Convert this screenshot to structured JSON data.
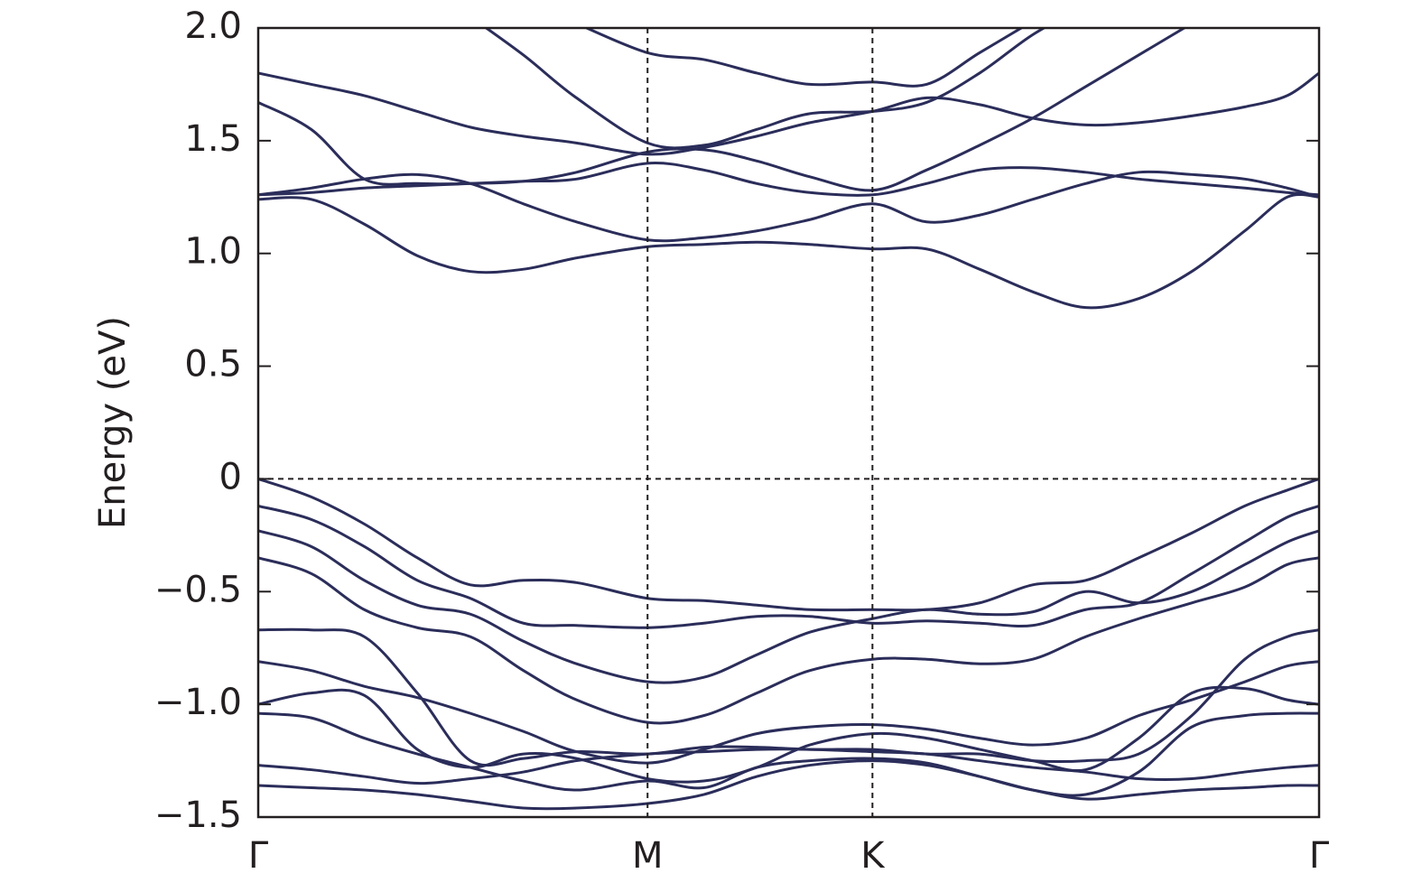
{
  "chart_data": {
    "type": "line",
    "ylabel": "Energy (eV)",
    "x": [
      0,
      0.05,
      0.1,
      0.15,
      0.2,
      0.25,
      0.3,
      0.367,
      0.42,
      0.47,
      0.52,
      0.579,
      0.63,
      0.68,
      0.73,
      0.78,
      0.83,
      0.88,
      0.93,
      0.97,
      1
    ],
    "xlim": [
      0,
      1
    ],
    "xticks": [
      {
        "value": 0,
        "label": "Γ"
      },
      {
        "value": 0.367,
        "label": "M"
      },
      {
        "value": 0.579,
        "label": "K"
      },
      {
        "value": 1,
        "label": "Γ"
      }
    ],
    "ylim": [
      -1.5,
      2.0
    ],
    "yticks": [
      {
        "value": 2.0,
        "label": "2.0"
      },
      {
        "value": 1.5,
        "label": "1.5"
      },
      {
        "value": 1.0,
        "label": "1.0"
      },
      {
        "value": 0.5,
        "label": "0.5"
      },
      0,
      {
        "value": -0.5,
        "label": "−0.5"
      },
      {
        "value": -1.0,
        "label": "−1.0"
      },
      {
        "value": -1.5,
        "label": "−1.5"
      }
    ],
    "dashed_hline": 0,
    "series": [
      {
        "color": "#2b2d5a",
        "values": [
          1.24,
          1.24,
          1.13,
          0.99,
          0.92,
          0.93,
          0.98,
          1.03,
          1.04,
          1.05,
          1.04,
          1.02,
          1.02,
          0.93,
          0.83,
          0.76,
          0.8,
          0.92,
          1.1,
          1.25,
          1.25
        ]
      },
      {
        "color": "#2b2d5a",
        "values": [
          1.26,
          1.29,
          1.33,
          1.35,
          1.31,
          1.22,
          1.14,
          1.06,
          1.07,
          1.1,
          1.15,
          1.22,
          1.14,
          1.17,
          1.24,
          1.31,
          1.36,
          1.35,
          1.33,
          1.29,
          1.25
        ]
      },
      {
        "color": "#2b2d5a",
        "values": [
          1.26,
          1.27,
          1.29,
          1.3,
          1.31,
          1.32,
          1.33,
          1.4,
          1.37,
          1.31,
          1.27,
          1.26,
          1.31,
          1.37,
          1.38,
          1.36,
          1.33,
          1.31,
          1.29,
          1.27,
          1.26
        ]
      },
      {
        "color": "#2b2d5a",
        "values": [
          1.67,
          1.55,
          1.33,
          1.31,
          1.31,
          1.32,
          1.36,
          1.45,
          1.46,
          1.41,
          1.34,
          1.28,
          1.37,
          1.48,
          1.6,
          1.74,
          1.88,
          2.02,
          null,
          null,
          null
        ]
      },
      {
        "color": "#2b2d5a",
        "values": [
          1.8,
          1.75,
          1.7,
          1.63,
          1.56,
          1.52,
          1.49,
          1.44,
          1.47,
          1.52,
          1.58,
          1.63,
          1.69,
          1.66,
          1.6,
          1.57,
          1.58,
          1.61,
          1.65,
          1.7,
          1.8
        ]
      },
      {
        "color": "#2b2d5a",
        "values": [
          null,
          null,
          null,
          null,
          2.05,
          1.88,
          1.69,
          1.49,
          1.48,
          1.55,
          1.62,
          1.63,
          1.67,
          1.8,
          1.97,
          2.1,
          null,
          null,
          null,
          null,
          null
        ]
      },
      {
        "color": "#2b2d5a",
        "values": [
          null,
          null,
          null,
          null,
          null,
          null,
          2.02,
          1.89,
          1.86,
          1.8,
          1.75,
          1.76,
          1.75,
          1.89,
          2.03,
          null,
          null,
          null,
          null,
          null,
          null
        ]
      },
      {
        "color": "#2b2d5a",
        "values": [
          0,
          -0.08,
          -0.2,
          -0.35,
          -0.47,
          -0.45,
          -0.46,
          -0.53,
          -0.54,
          -0.56,
          -0.58,
          -0.58,
          -0.58,
          -0.55,
          -0.47,
          -0.45,
          -0.35,
          -0.24,
          -0.12,
          -0.05,
          0
        ]
      },
      {
        "color": "#2b2d5a",
        "values": [
          -0.12,
          -0.18,
          -0.3,
          -0.45,
          -0.53,
          -0.64,
          -0.65,
          -0.66,
          -0.64,
          -0.61,
          -0.61,
          -0.64,
          -0.63,
          -0.64,
          -0.65,
          -0.58,
          -0.55,
          -0.42,
          -0.28,
          -0.17,
          -0.12
        ]
      },
      {
        "color": "#2b2d5a",
        "values": [
          -0.23,
          -0.3,
          -0.45,
          -0.56,
          -0.6,
          -0.72,
          -0.82,
          -0.9,
          -0.88,
          -0.78,
          -0.68,
          -0.62,
          -0.58,
          -0.6,
          -0.59,
          -0.5,
          -0.55,
          -0.5,
          -0.38,
          -0.28,
          -0.23
        ]
      },
      {
        "color": "#2b2d5a",
        "values": [
          -0.35,
          -0.42,
          -0.58,
          -0.66,
          -0.7,
          -0.85,
          -0.98,
          -1.08,
          -1.05,
          -0.95,
          -0.85,
          -0.8,
          -0.8,
          -0.82,
          -0.8,
          -0.7,
          -0.62,
          -0.55,
          -0.48,
          -0.38,
          -0.35
        ]
      },
      {
        "color": "#2b2d5a",
        "values": [
          -0.67,
          -0.67,
          -0.7,
          -0.95,
          -1.25,
          -1.24,
          -1.21,
          -1.22,
          -1.19,
          -1.19,
          -1.2,
          -1.2,
          -1.22,
          -1.22,
          -1.25,
          -1.25,
          -1.22,
          -1.05,
          -0.8,
          -0.7,
          -0.67
        ]
      },
      {
        "color": "#2b2d5a",
        "values": [
          -0.81,
          -0.85,
          -0.92,
          -0.97,
          -1.04,
          -1.12,
          -1.21,
          -1.26,
          -1.2,
          -1.13,
          -1.1,
          -1.09,
          -1.11,
          -1.15,
          -1.18,
          -1.15,
          -1.05,
          -0.98,
          -0.9,
          -0.83,
          -0.81
        ]
      },
      {
        "color": "#2b2d5a",
        "values": [
          -1.0,
          -0.95,
          -0.96,
          -1.2,
          -1.28,
          -1.22,
          -1.24,
          -1.33,
          -1.34,
          -1.28,
          -1.18,
          -1.13,
          -1.15,
          -1.2,
          -1.25,
          -1.29,
          -1.15,
          -0.95,
          -0.93,
          -0.98,
          -1.0
        ]
      },
      {
        "color": "#2b2d5a",
        "values": [
          -1.04,
          -1.06,
          -1.15,
          -1.22,
          -1.28,
          -1.34,
          -1.38,
          -1.34,
          -1.37,
          -1.28,
          -1.25,
          -1.24,
          -1.26,
          -1.32,
          -1.38,
          -1.4,
          -1.3,
          -1.1,
          -1.05,
          -1.04,
          -1.04
        ]
      },
      {
        "color": "#2b2d5a",
        "values": [
          -1.27,
          -1.29,
          -1.32,
          -1.35,
          -1.33,
          -1.3,
          -1.25,
          -1.22,
          -1.21,
          -1.2,
          -1.2,
          -1.21,
          -1.22,
          -1.25,
          -1.28,
          -1.3,
          -1.33,
          -1.33,
          -1.3,
          -1.28,
          -1.27
        ]
      },
      {
        "color": "#2b2d5a",
        "values": [
          -1.36,
          -1.37,
          -1.38,
          -1.4,
          -1.43,
          -1.46,
          -1.46,
          -1.44,
          -1.4,
          -1.32,
          -1.27,
          -1.25,
          -1.27,
          -1.32,
          -1.38,
          -1.42,
          -1.4,
          -1.38,
          -1.37,
          -1.36,
          -1.36
        ]
      }
    ]
  }
}
